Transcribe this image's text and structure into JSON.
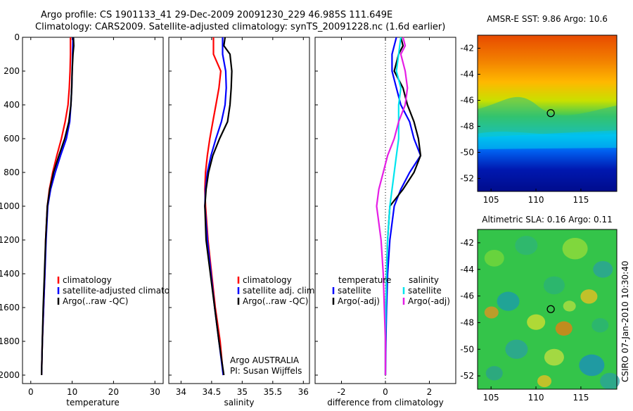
{
  "header": {
    "title_line1": "Argo profile: CS 1901133_41 29-Dec-2009 20091230_229 46.985S 111.649E",
    "title_line2": "Climatology: CARS2009. Satellite-adjusted climatology: synTS_20091228.nc (1.6d earlier)"
  },
  "footer": {
    "stamp": "CSIRO 07-Jan-2010 10:30:40"
  },
  "colors": {
    "climatology": "#ff0000",
    "satellite": "#0000ff",
    "argo": "#000000",
    "cyan": "#00e5ee",
    "magenta": "#e51ee5"
  },
  "chart_data": [
    {
      "type": "line",
      "id": "temperature",
      "xlabel": "temperature",
      "ylabel": "",
      "xlim": [
        -2,
        32
      ],
      "ylim": [
        2050,
        0
      ],
      "xticks": [
        0,
        10,
        20,
        30
      ],
      "yticks": [
        0,
        200,
        400,
        600,
        800,
        1000,
        1200,
        1400,
        1600,
        1800,
        2000
      ],
      "legend": [
        "climatology",
        "satellite-adjusted climatolog",
        "Argo(..raw -QC)"
      ],
      "series": [
        {
          "name": "climatology",
          "color": "red",
          "points": [
            [
              9.6,
              0
            ],
            [
              9.6,
              100
            ],
            [
              9.5,
              200
            ],
            [
              9.3,
              300
            ],
            [
              9.0,
              400
            ],
            [
              8.3,
              500
            ],
            [
              7.4,
              600
            ],
            [
              6.3,
              700
            ],
            [
              5.3,
              800
            ],
            [
              4.5,
              900
            ],
            [
              4.0,
              1000
            ],
            [
              3.6,
              1200
            ],
            [
              3.4,
              1400
            ],
            [
              3.1,
              1600
            ],
            [
              2.8,
              1800
            ],
            [
              2.6,
              2000
            ]
          ]
        },
        {
          "name": "satellite-adjusted climatolog",
          "color": "blue",
          "points": [
            [
              10.2,
              0
            ],
            [
              10.1,
              100
            ],
            [
              10.0,
              200
            ],
            [
              9.9,
              300
            ],
            [
              9.7,
              400
            ],
            [
              9.4,
              500
            ],
            [
              8.6,
              600
            ],
            [
              7.2,
              700
            ],
            [
              5.9,
              800
            ],
            [
              4.8,
              900
            ],
            [
              4.1,
              1000
            ],
            [
              3.7,
              1200
            ],
            [
              3.4,
              1400
            ],
            [
              3.1,
              1600
            ],
            [
              2.8,
              1800
            ],
            [
              2.6,
              2000
            ]
          ]
        },
        {
          "name": "Argo(..raw -QC)",
          "color": "black",
          "points": [
            [
              10.3,
              0
            ],
            [
              10.4,
              50
            ],
            [
              10.2,
              100
            ],
            [
              10.0,
              200
            ],
            [
              9.9,
              300
            ],
            [
              9.7,
              400
            ],
            [
              9.2,
              500
            ],
            [
              8.2,
              600
            ],
            [
              6.8,
              700
            ],
            [
              5.5,
              800
            ],
            [
              4.6,
              900
            ],
            [
              4.0,
              1000
            ],
            [
              3.6,
              1200
            ],
            [
              3.3,
              1400
            ],
            [
              3.0,
              1600
            ],
            [
              2.8,
              1800
            ],
            [
              2.6,
              2000
            ]
          ]
        }
      ]
    },
    {
      "type": "line",
      "id": "salinity",
      "xlabel": "salinity",
      "ylabel": "",
      "xlim": [
        33.8,
        36.1
      ],
      "ylim": [
        2050,
        0
      ],
      "xticks": [
        34,
        34.5,
        35,
        35.5,
        36
      ],
      "xticklabels": [
        "34",
        "34.5",
        "35",
        "35.5",
        "36"
      ],
      "legend": [
        "climatology",
        "satellite adj. clim.",
        "Argo(..raw -QC)"
      ],
      "annotation": [
        "Argo AUSTRALIA",
        "PI: Susan Wijffels"
      ],
      "series": [
        {
          "name": "climatology",
          "color": "red",
          "points": [
            [
              34.53,
              0
            ],
            [
              34.53,
              100
            ],
            [
              34.65,
              200
            ],
            [
              34.62,
              300
            ],
            [
              34.57,
              400
            ],
            [
              34.52,
              500
            ],
            [
              34.47,
              600
            ],
            [
              34.43,
              700
            ],
            [
              34.4,
              800
            ],
            [
              34.39,
              900
            ],
            [
              34.4,
              1000
            ],
            [
              34.44,
              1200
            ],
            [
              34.5,
              1400
            ],
            [
              34.56,
              1600
            ],
            [
              34.64,
              1800
            ],
            [
              34.69,
              2000
            ]
          ]
        },
        {
          "name": "satellite adj. clim.",
          "color": "blue",
          "points": [
            [
              34.68,
              0
            ],
            [
              34.68,
              100
            ],
            [
              34.73,
              200
            ],
            [
              34.74,
              300
            ],
            [
              34.72,
              400
            ],
            [
              34.66,
              500
            ],
            [
              34.57,
              600
            ],
            [
              34.49,
              700
            ],
            [
              34.43,
              800
            ],
            [
              34.4,
              900
            ],
            [
              34.39,
              1000
            ],
            [
              34.43,
              1200
            ],
            [
              34.49,
              1400
            ],
            [
              34.55,
              1600
            ],
            [
              34.62,
              1800
            ],
            [
              34.69,
              2000
            ]
          ]
        },
        {
          "name": "Argo(..raw -QC)",
          "color": "black",
          "points": [
            [
              34.72,
              0
            ],
            [
              34.7,
              50
            ],
            [
              34.8,
              100
            ],
            [
              34.83,
              200
            ],
            [
              34.82,
              300
            ],
            [
              34.8,
              400
            ],
            [
              34.76,
              500
            ],
            [
              34.63,
              600
            ],
            [
              34.52,
              700
            ],
            [
              34.45,
              800
            ],
            [
              34.41,
              900
            ],
            [
              34.39,
              1000
            ],
            [
              34.41,
              1200
            ],
            [
              34.48,
              1400
            ],
            [
              34.55,
              1600
            ],
            [
              34.62,
              1800
            ],
            [
              34.7,
              2000
            ]
          ]
        }
      ]
    },
    {
      "type": "line",
      "id": "difference",
      "xlabel": "difference from climatology",
      "ylabel": "",
      "xlim": [
        -3.2,
        3.2
      ],
      "ylim": [
        2050,
        0
      ],
      "xticks": [
        -2,
        0,
        2
      ],
      "legend": [
        "temperature",
        "satellite",
        "Argo(-adj)",
        "salinity",
        "satellite",
        "Argo(-adj)"
      ],
      "series": [
        {
          "name": "temperature satellite",
          "color": "blue",
          "points": [
            [
              0.5,
              0
            ],
            [
              0.3,
              100
            ],
            [
              0.3,
              200
            ],
            [
              0.5,
              300
            ],
            [
              0.7,
              400
            ],
            [
              1.1,
              500
            ],
            [
              1.3,
              600
            ],
            [
              1.6,
              700
            ],
            [
              1.1,
              800
            ],
            [
              0.7,
              900
            ],
            [
              0.4,
              1000
            ],
            [
              0.2,
              1200
            ],
            [
              0.1,
              1400
            ],
            [
              0.05,
              1600
            ],
            [
              0.02,
              1800
            ],
            [
              0.0,
              2000
            ]
          ]
        },
        {
          "name": "temperature Argo(-adj)",
          "color": "black",
          "points": [
            [
              0.7,
              0
            ],
            [
              0.8,
              50
            ],
            [
              0.6,
              100
            ],
            [
              0.4,
              200
            ],
            [
              0.8,
              300
            ],
            [
              1.0,
              400
            ],
            [
              1.3,
              500
            ],
            [
              1.5,
              600
            ],
            [
              1.6,
              700
            ],
            [
              1.3,
              800
            ],
            [
              0.8,
              900
            ],
            [
              0.2,
              1000
            ],
            [
              0.1,
              1200
            ],
            [
              0.05,
              1400
            ],
            [
              0.02,
              1600
            ],
            [
              0.0,
              1800
            ],
            [
              0.0,
              2000
            ]
          ]
        },
        {
          "name": "salinity satellite",
          "color": "cyan",
          "points": [
            [
              0.7,
              0
            ],
            [
              0.6,
              100
            ],
            [
              0.5,
              200
            ],
            [
              0.7,
              300
            ],
            [
              0.6,
              400
            ],
            [
              0.6,
              500
            ],
            [
              0.6,
              600
            ],
            [
              0.5,
              700
            ],
            [
              0.4,
              800
            ],
            [
              0.3,
              900
            ],
            [
              0.2,
              1000
            ],
            [
              0.1,
              1200
            ],
            [
              0.05,
              1400
            ],
            [
              0.02,
              1600
            ],
            [
              0.0,
              1800
            ],
            [
              0.0,
              2000
            ]
          ]
        },
        {
          "name": "salinity Argo(-adj)",
          "color": "magenta",
          "points": [
            [
              0.8,
              0
            ],
            [
              0.9,
              50
            ],
            [
              0.7,
              100
            ],
            [
              0.9,
              200
            ],
            [
              1.0,
              300
            ],
            [
              0.9,
              400
            ],
            [
              0.6,
              500
            ],
            [
              0.4,
              600
            ],
            [
              0.1,
              700
            ],
            [
              -0.1,
              800
            ],
            [
              -0.3,
              900
            ],
            [
              -0.4,
              1000
            ],
            [
              -0.2,
              1200
            ],
            [
              -0.1,
              1400
            ],
            [
              -0.05,
              1600
            ],
            [
              0.0,
              1800
            ],
            [
              0.0,
              2000
            ]
          ]
        }
      ]
    },
    {
      "type": "heatmap",
      "id": "sst_map",
      "title": "AMSR-E SST: 9.86 Argo: 10.6",
      "xlim": [
        103.5,
        119
      ],
      "ylim": [
        -53,
        -41
      ],
      "xticks": [
        105,
        110,
        115
      ],
      "yticks": [
        -42,
        -44,
        -46,
        -48,
        -50,
        -52
      ],
      "marker": {
        "lon": 111.649,
        "lat": -46.985
      }
    },
    {
      "type": "heatmap",
      "id": "sla_map",
      "title": "Altimetric SLA: 0.16 Argo: 0.11",
      "xlim": [
        103.5,
        119
      ],
      "ylim": [
        -53,
        -41
      ],
      "xticks": [
        105,
        110,
        115
      ],
      "yticks": [
        -42,
        -44,
        -46,
        -48,
        -50,
        -52
      ],
      "marker": {
        "lon": 111.649,
        "lat": -46.985
      }
    }
  ]
}
